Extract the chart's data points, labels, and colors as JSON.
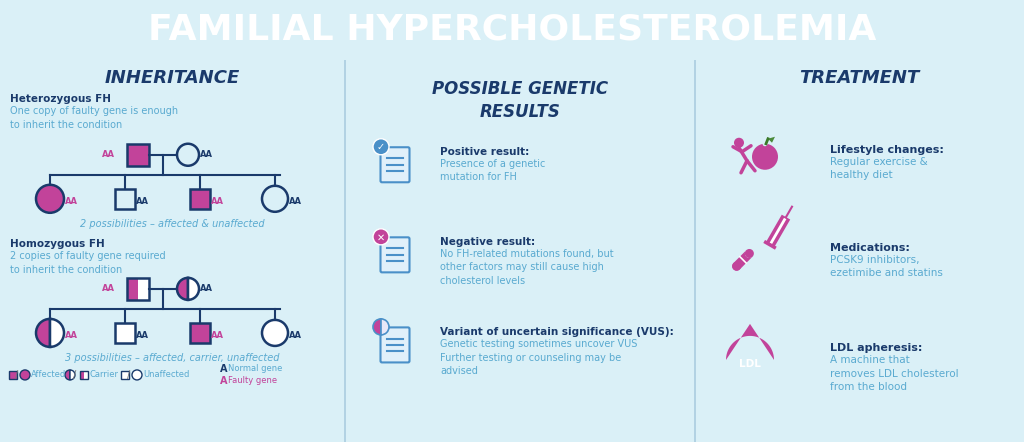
{
  "title": "FAMILIAL HYPERCHOLESTEROLEMIA",
  "title_bg": "#C2439A",
  "title_color": "#FFFFFF",
  "bg_color": "#DAF0F7",
  "section1_title": "INHERITANCE",
  "section2_title": "POSSIBLE GENETIC\nRESULTS",
  "section3_title": "TREATMENT",
  "pink": "#C2439A",
  "blue_dark": "#1A3A6B",
  "blue_mid": "#4A90C8",
  "white": "#FFFFFF",
  "text_blue": "#5AAAD0",
  "divider_color": "#AACCE0",
  "hetero_title": "Heterozygous FH",
  "hetero_desc": "One copy of faulty gene is enough\nto inherit the condition",
  "homo_title": "Homozygous FH",
  "homo_desc": "2 copies of faulty gene required\nto inherit the condition",
  "hetero_caption": "2 possibilities – affected & unaffected",
  "homo_caption": "3 possibilities – affected, carrier, unaffected",
  "positive_title": "Positive result:",
  "positive_desc": "Presence of a genetic\nmutation for FH",
  "negative_title": "Negative result:",
  "negative_desc": "No FH-related mutations found, but\nother factors may still cause high\ncholesterol levels",
  "vus_title": "Variant of uncertain significance (VUS):",
  "vus_desc": "Genetic testing sometimes uncover VUS\nFurther testing or counseling may be\nadvised",
  "lifestyle_title": "Lifestyle changes:",
  "lifestyle_desc": "Regular exercise &\nhealthy diet",
  "meds_title": "Medications:",
  "meds_desc": "PCSK9 inhibitors,\nezetimibe and statins",
  "ldl_title": "LDL apheresis:",
  "ldl_desc": "A machine that\nremoves LDL cholesterol\nfrom the blood"
}
